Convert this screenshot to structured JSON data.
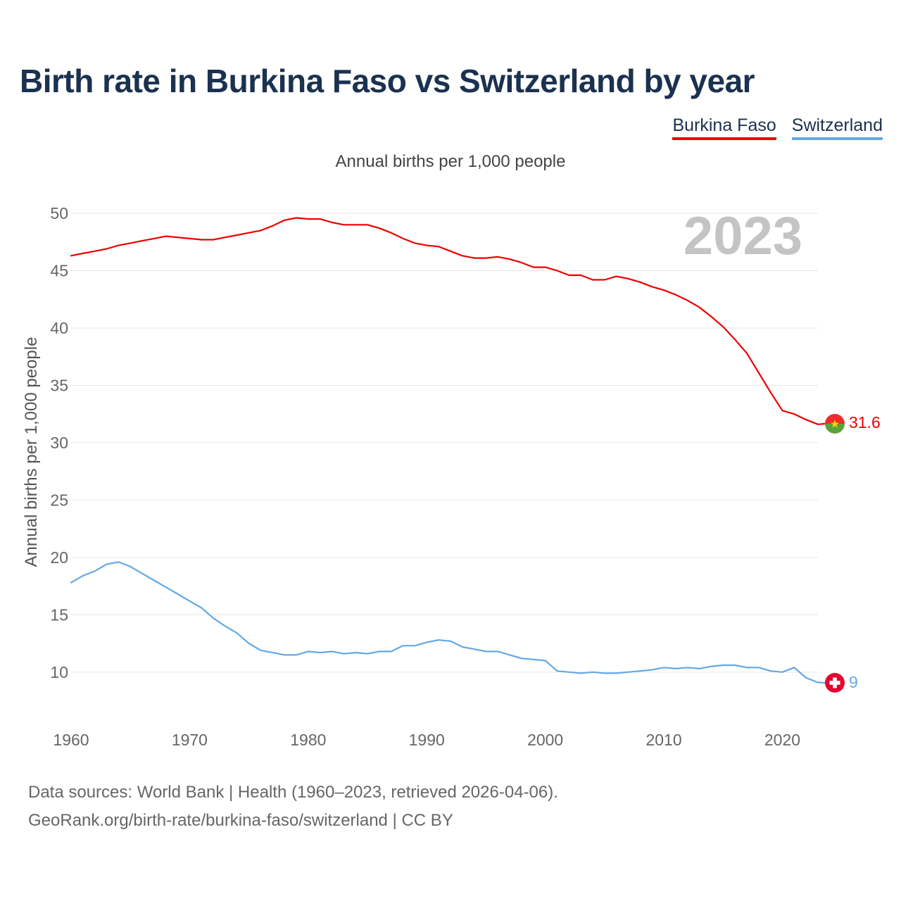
{
  "title": "Birth rate in Burkina Faso vs Switzerland by year",
  "legend": {
    "bf": "Burkina Faso",
    "ch": "Switzerland"
  },
  "subtitle": "Annual births per 1,000 people",
  "year_label": "2023",
  "footer": {
    "line1": "Data sources: World Bank | Health (1960–2023, retrieved 2026-04-06).",
    "line2": "GeoRank.org/birth-rate/burkina-faso/switzerland | CC BY"
  },
  "colors": {
    "bf": "#ee0000",
    "ch": "#63a8e6",
    "grid": "#e6e6e6"
  },
  "chart_data": {
    "type": "line",
    "title": "Birth rate in Burkina Faso vs Switzerland by year",
    "xlabel": "",
    "ylabel": "Annual births per 1,000 people",
    "xlim": [
      1960,
      2023
    ],
    "ylim": [
      6,
      50
    ],
    "x_ticks": [
      1960,
      1970,
      1980,
      1990,
      2000,
      2010,
      2020
    ],
    "y_ticks": [
      10,
      15,
      20,
      25,
      30,
      35,
      40,
      45,
      50
    ],
    "series": [
      {
        "name": "Burkina Faso",
        "color": "#ee0000",
        "end_label": "31.6",
        "x": [
          1960,
          1961,
          1962,
          1963,
          1964,
          1965,
          1966,
          1967,
          1968,
          1969,
          1970,
          1971,
          1972,
          1973,
          1974,
          1975,
          1976,
          1977,
          1978,
          1979,
          1980,
          1981,
          1982,
          1983,
          1984,
          1985,
          1986,
          1987,
          1988,
          1989,
          1990,
          1991,
          1992,
          1993,
          1994,
          1995,
          1996,
          1997,
          1998,
          1999,
          2000,
          2001,
          2002,
          2003,
          2004,
          2005,
          2006,
          2007,
          2008,
          2009,
          2010,
          2011,
          2012,
          2013,
          2014,
          2015,
          2016,
          2017,
          2018,
          2019,
          2020,
          2021,
          2022,
          2023
        ],
        "values": [
          46.3,
          46.5,
          46.7,
          46.9,
          47.2,
          47.4,
          47.6,
          47.8,
          48.0,
          47.9,
          47.8,
          47.7,
          47.7,
          47.9,
          48.1,
          48.3,
          48.5,
          48.9,
          49.4,
          49.6,
          49.5,
          49.5,
          49.2,
          49.0,
          49.0,
          49.0,
          48.7,
          48.3,
          47.8,
          47.4,
          47.2,
          47.1,
          46.7,
          46.3,
          46.1,
          46.1,
          46.2,
          46.0,
          45.7,
          45.3,
          45.3,
          45.0,
          44.6,
          44.6,
          44.2,
          44.2,
          44.5,
          44.3,
          44.0,
          43.6,
          43.3,
          42.9,
          42.4,
          41.8,
          41.0,
          40.1,
          39.0,
          37.8,
          36.1,
          34.4,
          32.8,
          32.5,
          32.0,
          31.6
        ]
      },
      {
        "name": "Switzerland",
        "color": "#63a8e6",
        "end_label": "9",
        "x": [
          1960,
          1961,
          1962,
          1963,
          1964,
          1965,
          1966,
          1967,
          1968,
          1969,
          1970,
          1971,
          1972,
          1973,
          1974,
          1975,
          1976,
          1977,
          1978,
          1979,
          1980,
          1981,
          1982,
          1983,
          1984,
          1985,
          1986,
          1987,
          1988,
          1989,
          1990,
          1991,
          1992,
          1993,
          1994,
          1995,
          1996,
          1997,
          1998,
          1999,
          2000,
          2001,
          2002,
          2003,
          2004,
          2005,
          2006,
          2007,
          2008,
          2009,
          2010,
          2011,
          2012,
          2013,
          2014,
          2015,
          2016,
          2017,
          2018,
          2019,
          2020,
          2021,
          2022,
          2023
        ],
        "values": [
          17.8,
          18.4,
          18.8,
          19.4,
          19.6,
          19.2,
          18.6,
          18.0,
          17.4,
          16.8,
          16.2,
          15.6,
          14.7,
          14.0,
          13.4,
          12.5,
          11.9,
          11.7,
          11.5,
          11.5,
          11.8,
          11.7,
          11.8,
          11.6,
          11.7,
          11.6,
          11.8,
          11.8,
          12.3,
          12.3,
          12.6,
          12.8,
          12.7,
          12.2,
          12.0,
          11.8,
          11.8,
          11.5,
          11.2,
          11.1,
          11.0,
          10.1,
          10.0,
          9.9,
          10.0,
          9.9,
          9.9,
          10.0,
          10.1,
          10.2,
          10.4,
          10.3,
          10.4,
          10.3,
          10.5,
          10.6,
          10.6,
          10.4,
          10.4,
          10.1,
          10.0,
          10.4,
          9.5,
          9.1
        ]
      }
    ]
  }
}
